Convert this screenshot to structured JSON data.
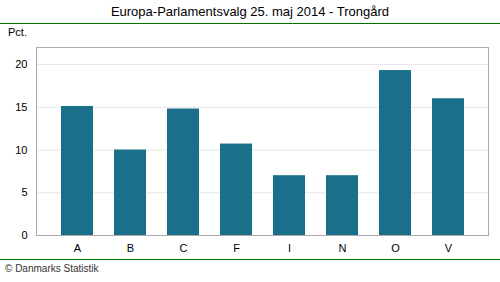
{
  "chart_data": {
    "type": "bar",
    "title": "Europa-Parlamentsvalg 25. maj 2014 - Trongård",
    "ylabel": "Pct.",
    "annotations": [
      "© Danmarks Statistik"
    ],
    "categories": [
      "A",
      "B",
      "C",
      "F",
      "I",
      "N",
      "O",
      "V"
    ],
    "values": [
      15.1,
      10.0,
      14.8,
      10.7,
      7.0,
      7.0,
      19.3,
      16.0
    ],
    "color": "#1a6f8a",
    "ylim": [
      0,
      22
    ],
    "yticks": [
      0,
      5,
      10,
      15,
      20
    ],
    "grid": true
  }
}
